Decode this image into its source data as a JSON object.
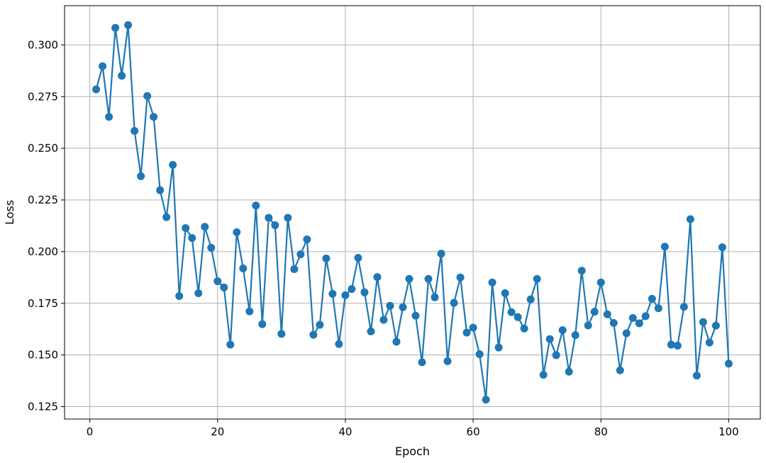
{
  "chart_data": {
    "type": "line",
    "title": "",
    "xlabel": "Epoch",
    "ylabel": "Loss",
    "xlim": [
      -3.95,
      104.95
    ],
    "ylim": [
      0.119,
      0.319
    ],
    "xticks": [
      0,
      20,
      40,
      60,
      80,
      100
    ],
    "xtick_labels": [
      "0",
      "20",
      "40",
      "60",
      "80",
      "100"
    ],
    "yticks": [
      0.125,
      0.15,
      0.175,
      0.2,
      0.225,
      0.25,
      0.275,
      0.3
    ],
    "ytick_labels": [
      "0.125",
      "0.150",
      "0.175",
      "0.200",
      "0.225",
      "0.250",
      "0.275",
      "0.300"
    ],
    "grid": true,
    "marker": "circle",
    "color": "#1f77b4",
    "series": [
      {
        "name": "",
        "x": [
          1,
          2,
          3,
          4,
          5,
          6,
          7,
          8,
          9,
          10,
          11,
          12,
          13,
          14,
          15,
          16,
          17,
          18,
          19,
          20,
          21,
          22,
          23,
          24,
          25,
          26,
          27,
          28,
          29,
          30,
          31,
          32,
          33,
          34,
          35,
          36,
          37,
          38,
          39,
          40,
          41,
          42,
          43,
          44,
          45,
          46,
          47,
          48,
          49,
          50,
          51,
          52,
          53,
          54,
          55,
          56,
          57,
          58,
          59,
          60,
          61,
          62,
          63,
          64,
          65,
          66,
          67,
          68,
          69,
          70,
          71,
          72,
          73,
          74,
          75,
          76,
          77,
          78,
          79,
          80,
          81,
          82,
          83,
          84,
          85,
          86,
          87,
          88,
          89,
          90,
          91,
          92,
          93,
          94,
          95,
          96,
          97,
          98,
          99,
          100
        ],
        "y": [
          0.2785,
          0.2897,
          0.2652,
          0.3083,
          0.2851,
          0.3096,
          0.2584,
          0.2365,
          0.2753,
          0.2652,
          0.2297,
          0.2167,
          0.242,
          0.1785,
          0.2114,
          0.2066,
          0.1799,
          0.212,
          0.2019,
          0.1857,
          0.1827,
          0.155,
          0.2094,
          0.1919,
          0.1711,
          0.2223,
          0.1649,
          0.2164,
          0.2128,
          0.1602,
          0.2164,
          0.1915,
          0.1987,
          0.2059,
          0.1598,
          0.1646,
          0.1967,
          0.1796,
          0.1553,
          0.1789,
          0.1819,
          0.197,
          0.1803,
          0.1614,
          0.1877,
          0.167,
          0.1738,
          0.1564,
          0.1731,
          0.1868,
          0.169,
          0.1465,
          0.1868,
          0.1779,
          0.199,
          0.147,
          0.1752,
          0.1875,
          0.1608,
          0.1632,
          0.1504,
          0.1284,
          0.1851,
          0.1536,
          0.1799,
          0.1707,
          0.1683,
          0.1628,
          0.1769,
          0.1868,
          0.1404,
          0.1577,
          0.1499,
          0.162,
          0.1419,
          0.1596,
          0.1908,
          0.1643,
          0.1709,
          0.1851,
          0.1697,
          0.1655,
          0.1426,
          0.1605,
          0.1679,
          0.1653,
          0.1688,
          0.1772,
          0.1726,
          0.2024,
          0.155,
          0.1545,
          0.1733,
          0.2157,
          0.14,
          0.1659,
          0.156,
          0.1642,
          0.2021,
          0.1458
        ]
      }
    ]
  }
}
